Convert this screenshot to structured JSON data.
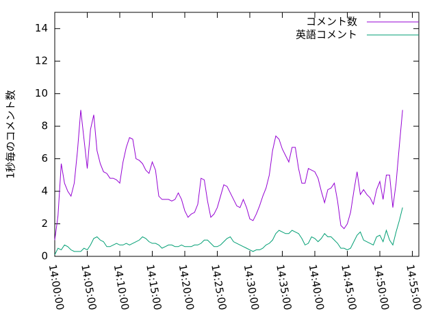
{
  "chart_data": {
    "type": "line",
    "ylabel": "1秒毎のコメント数",
    "x": [
      "14:00:00",
      "14:00:30",
      "14:01:00",
      "14:01:30",
      "14:02:00",
      "14:02:30",
      "14:03:00",
      "14:03:30",
      "14:04:00",
      "14:04:30",
      "14:05:00",
      "14:05:30",
      "14:06:00",
      "14:06:30",
      "14:07:00",
      "14:07:30",
      "14:08:00",
      "14:08:30",
      "14:09:00",
      "14:09:30",
      "14:10:00",
      "14:10:30",
      "14:11:00",
      "14:11:30",
      "14:12:00",
      "14:12:30",
      "14:13:00",
      "14:13:30",
      "14:14:00",
      "14:14:30",
      "14:15:00",
      "14:15:30",
      "14:16:00",
      "14:16:30",
      "14:17:00",
      "14:17:30",
      "14:18:00",
      "14:18:30",
      "14:19:00",
      "14:19:30",
      "14:20:00",
      "14:20:30",
      "14:21:00",
      "14:21:30",
      "14:22:00",
      "14:22:30",
      "14:23:00",
      "14:23:30",
      "14:24:00",
      "14:24:30",
      "14:25:00",
      "14:25:30",
      "14:26:00",
      "14:26:30",
      "14:27:00",
      "14:27:30",
      "14:28:00",
      "14:28:30",
      "14:29:00",
      "14:29:30",
      "14:30:00",
      "14:30:30",
      "14:31:00",
      "14:31:30",
      "14:32:00",
      "14:32:30",
      "14:33:00",
      "14:33:30",
      "14:34:00",
      "14:34:30",
      "14:35:00",
      "14:35:30",
      "14:36:00",
      "14:36:30",
      "14:37:00",
      "14:37:30",
      "14:38:00",
      "14:38:30",
      "14:39:00",
      "14:39:30",
      "14:40:00",
      "14:40:30",
      "14:41:00",
      "14:41:30",
      "14:42:00",
      "14:42:30",
      "14:43:00",
      "14:43:30",
      "14:44:00",
      "14:44:30",
      "14:45:00",
      "14:45:30",
      "14:46:00",
      "14:46:30",
      "14:47:00",
      "14:47:30",
      "14:48:00",
      "14:48:30",
      "14:49:00",
      "14:49:30",
      "14:50:00",
      "14:50:30",
      "14:51:00",
      "14:51:30",
      "14:52:00",
      "14:52:30",
      "14:53:00",
      "14:53:30"
    ],
    "series": [
      {
        "name": "コメント数",
        "color": "#9400d3",
        "values": [
          1.0,
          2.5,
          5.7,
          4.5,
          4.0,
          3.7,
          4.5,
          6.5,
          9.0,
          7.2,
          5.4,
          7.8,
          8.7,
          6.5,
          5.7,
          5.2,
          5.1,
          4.8,
          4.8,
          4.7,
          4.5,
          5.8,
          6.7,
          7.3,
          7.2,
          6.0,
          5.9,
          5.7,
          5.3,
          5.1,
          5.8,
          5.3,
          3.7,
          3.5,
          3.5,
          3.5,
          3.4,
          3.5,
          3.9,
          3.5,
          2.8,
          2.4,
          2.6,
          2.7,
          3.2,
          4.8,
          4.7,
          3.4,
          2.4,
          2.6,
          3.0,
          3.7,
          4.4,
          4.3,
          3.9,
          3.5,
          3.1,
          3.0,
          3.5,
          3.0,
          2.3,
          2.2,
          2.6,
          3.1,
          3.7,
          4.2,
          5.0,
          6.5,
          7.4,
          7.2,
          6.6,
          6.2,
          5.8,
          6.7,
          6.7,
          5.4,
          4.5,
          4.5,
          5.4,
          5.3,
          5.2,
          4.8,
          4.0,
          3.3,
          4.1,
          4.2,
          4.5,
          3.4,
          1.9,
          1.7,
          2.0,
          2.7,
          4.0,
          5.2,
          3.8,
          4.1,
          3.8,
          3.6,
          3.2,
          4.1,
          4.6,
          3.5,
          5.0,
          5.0,
          3.0,
          4.5,
          6.8,
          9.0
        ]
      },
      {
        "name": "英語コメント",
        "color": "#009e73",
        "values": [
          0.1,
          0.5,
          0.4,
          0.7,
          0.6,
          0.4,
          0.3,
          0.3,
          0.3,
          0.5,
          0.4,
          0.7,
          1.1,
          1.2,
          1.0,
          0.9,
          0.6,
          0.6,
          0.7,
          0.8,
          0.7,
          0.7,
          0.8,
          0.7,
          0.8,
          0.9,
          1.0,
          1.2,
          1.1,
          0.9,
          0.8,
          0.8,
          0.7,
          0.5,
          0.6,
          0.7,
          0.7,
          0.6,
          0.6,
          0.7,
          0.6,
          0.6,
          0.6,
          0.7,
          0.7,
          0.8,
          1.0,
          1.0,
          0.8,
          0.6,
          0.6,
          0.7,
          0.9,
          1.1,
          1.2,
          0.9,
          0.8,
          0.7,
          0.6,
          0.5,
          0.4,
          0.3,
          0.4,
          0.4,
          0.5,
          0.7,
          0.8,
          1.0,
          1.4,
          1.6,
          1.5,
          1.4,
          1.4,
          1.6,
          1.5,
          1.4,
          1.1,
          0.7,
          0.8,
          1.2,
          1.1,
          0.9,
          1.1,
          1.4,
          1.2,
          1.2,
          1.0,
          0.8,
          0.5,
          0.5,
          0.4,
          0.5,
          0.9,
          1.3,
          1.5,
          1.0,
          0.9,
          0.8,
          0.7,
          1.2,
          1.3,
          0.9,
          1.6,
          1.0,
          0.7,
          1.5,
          2.2,
          3.0
        ]
      }
    ],
    "xlim": [
      "14:00:00",
      "14:56:00"
    ],
    "xticks": [
      "14:00:00",
      "14:05:00",
      "14:10:00",
      "14:15:00",
      "14:20:00",
      "14:25:00",
      "14:30:00",
      "14:35:00",
      "14:40:00",
      "14:45:00",
      "14:50:00",
      "14:55:00"
    ],
    "ylim": [
      0,
      15
    ],
    "yticks": [
      0,
      2,
      4,
      6,
      8,
      10,
      12,
      14
    ],
    "legend": "top-right"
  }
}
